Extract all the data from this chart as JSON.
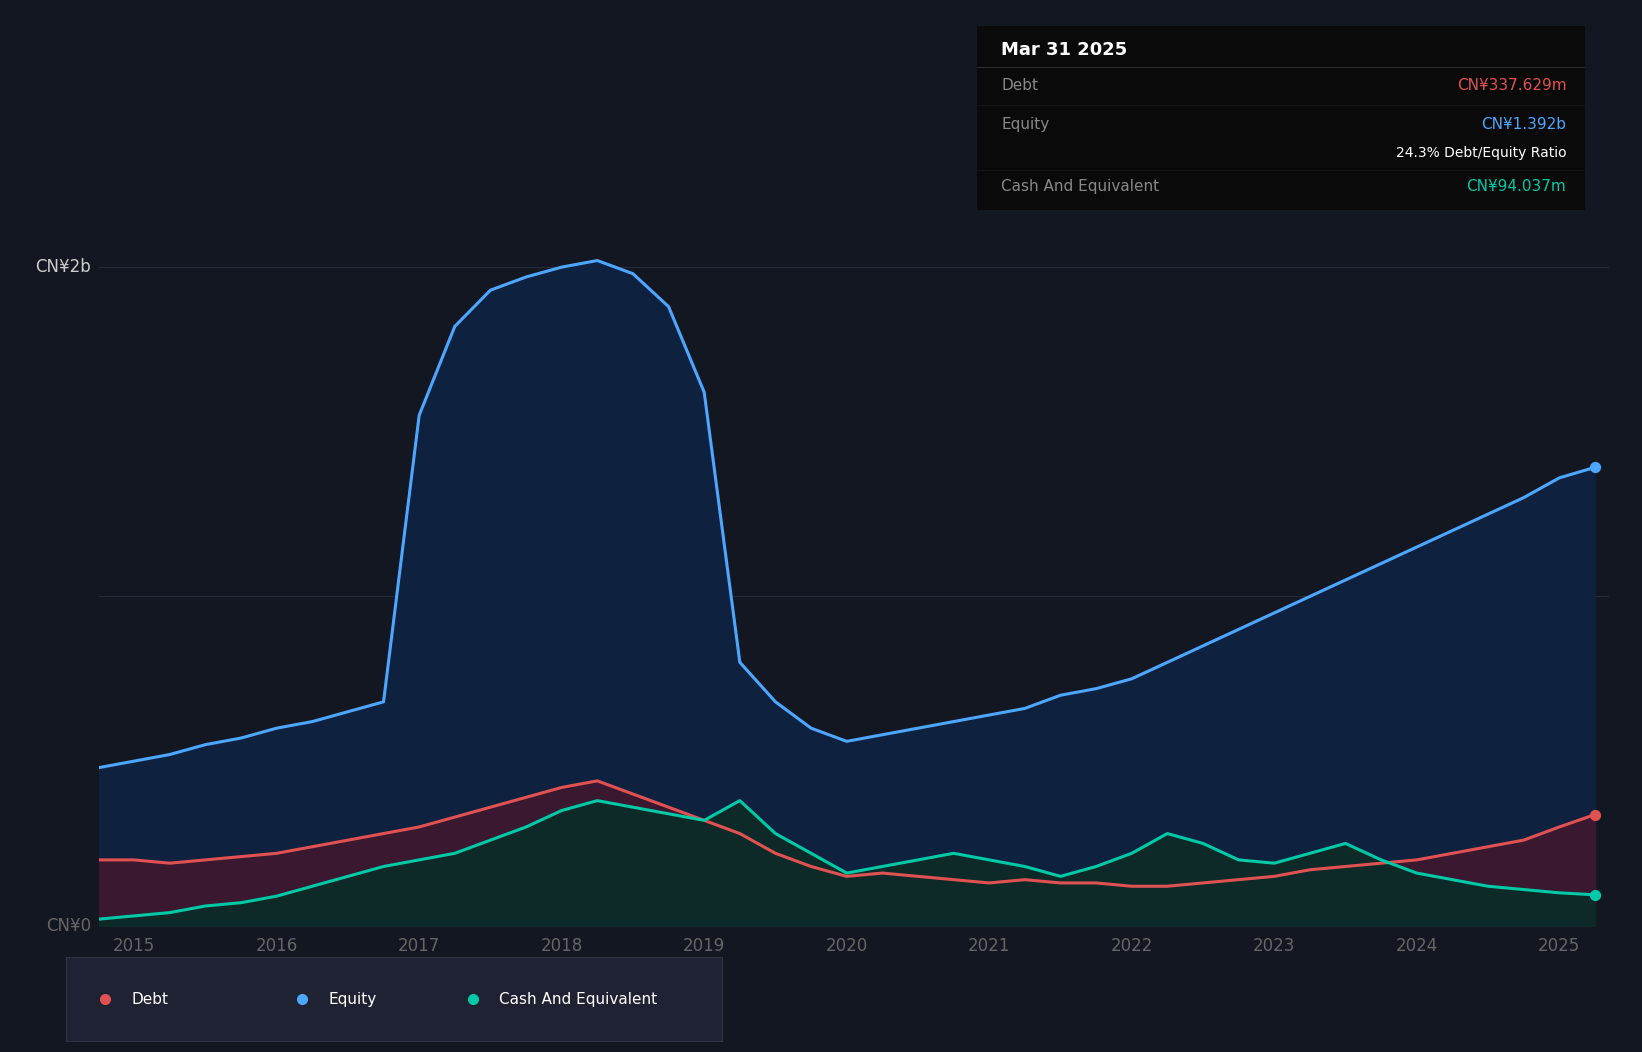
{
  "background_color": "#131722",
  "plot_bg_color": "#131722",
  "ylabel_2b": "CN¥2b",
  "ylabel_0": "CN¥0",
  "tooltip": {
    "date": "Mar 31 2025",
    "debt_label": "Debt",
    "debt_value": "CN¥337.629m",
    "equity_label": "Equity",
    "equity_value": "CN¥1.392b",
    "ratio_text": "24.3% Debt/Equity Ratio",
    "cash_label": "Cash And Equivalent",
    "cash_value": "CN¥94.037m",
    "bg_color": "#0a0a0a",
    "header_text_color": "#ffffff",
    "label_color": "#888888",
    "debt_color": "#e05252",
    "equity_color": "#4da6ff",
    "cash_color": "#00c9a7",
    "ratio_color": "#ffffff"
  },
  "legend": {
    "items": [
      "Debt",
      "Equity",
      "Cash And Equivalent"
    ],
    "colors": [
      "#e05252",
      "#4da6ff",
      "#00c9a7"
    ],
    "bg_color": "#1e2233"
  },
  "grid_color": "#252d3d",
  "tick_color": "#666666",
  "line_width": 2.2,
  "equity_color": "#4da6ff",
  "equity_fill_alpha": 0.9,
  "debt_color": "#e05252",
  "debt_fill_color": "#3a1830",
  "cash_color": "#00c9a7",
  "cash_fill_color": "#0e2a28",
  "years": [
    2014.75,
    2015.0,
    2015.25,
    2015.5,
    2015.75,
    2016.0,
    2016.25,
    2016.5,
    2016.75,
    2017.0,
    2017.25,
    2017.5,
    2017.75,
    2018.0,
    2018.25,
    2018.5,
    2018.75,
    2019.0,
    2019.25,
    2019.5,
    2019.75,
    2020.0,
    2020.25,
    2020.5,
    2020.75,
    2021.0,
    2021.25,
    2021.5,
    2021.75,
    2022.0,
    2022.25,
    2022.5,
    2022.75,
    2023.0,
    2023.25,
    2023.5,
    2023.75,
    2024.0,
    2024.25,
    2024.5,
    2024.75,
    2025.0,
    2025.25
  ],
  "equity": [
    0.48,
    0.5,
    0.52,
    0.55,
    0.57,
    0.6,
    0.62,
    0.65,
    0.68,
    1.55,
    1.82,
    1.93,
    1.97,
    2.0,
    2.02,
    1.98,
    1.88,
    1.62,
    0.8,
    0.68,
    0.6,
    0.56,
    0.58,
    0.6,
    0.62,
    0.64,
    0.66,
    0.7,
    0.72,
    0.75,
    0.8,
    0.85,
    0.9,
    0.95,
    1.0,
    1.05,
    1.1,
    1.15,
    1.2,
    1.25,
    1.3,
    1.36,
    1.392
  ],
  "debt": [
    0.2,
    0.2,
    0.19,
    0.2,
    0.21,
    0.22,
    0.24,
    0.26,
    0.28,
    0.3,
    0.33,
    0.36,
    0.39,
    0.42,
    0.44,
    0.4,
    0.36,
    0.32,
    0.28,
    0.22,
    0.18,
    0.15,
    0.16,
    0.15,
    0.14,
    0.13,
    0.14,
    0.13,
    0.13,
    0.12,
    0.12,
    0.13,
    0.14,
    0.15,
    0.17,
    0.18,
    0.19,
    0.2,
    0.22,
    0.24,
    0.26,
    0.3,
    0.3376
  ],
  "cash": [
    0.02,
    0.03,
    0.04,
    0.06,
    0.07,
    0.09,
    0.12,
    0.15,
    0.18,
    0.2,
    0.22,
    0.26,
    0.3,
    0.35,
    0.38,
    0.36,
    0.34,
    0.32,
    0.38,
    0.28,
    0.22,
    0.16,
    0.18,
    0.2,
    0.22,
    0.2,
    0.18,
    0.15,
    0.18,
    0.22,
    0.28,
    0.25,
    0.2,
    0.19,
    0.22,
    0.25,
    0.2,
    0.16,
    0.14,
    0.12,
    0.11,
    0.1,
    0.094
  ],
  "xlim": [
    2014.75,
    2025.35
  ],
  "ylim": [
    0,
    2.3
  ],
  "yticks": [
    0,
    1.0,
    2.0
  ],
  "xticks": [
    2015,
    2016,
    2017,
    2018,
    2019,
    2020,
    2021,
    2022,
    2023,
    2024,
    2025
  ],
  "xtick_labels": [
    "2015",
    "2016",
    "2017",
    "2018",
    "2019",
    "2020",
    "2021",
    "2022",
    "2023",
    "2024",
    "2025"
  ]
}
